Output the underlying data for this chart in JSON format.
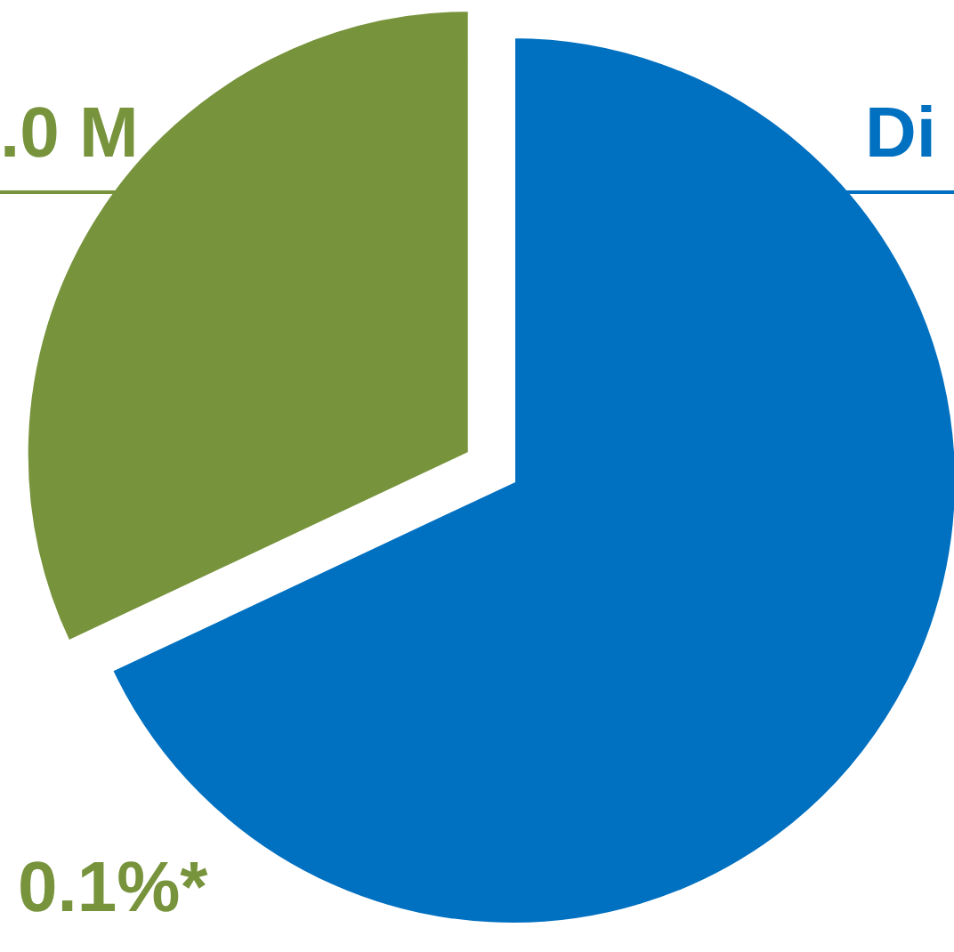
{
  "chart_data": {
    "type": "pie",
    "categories": [
      null,
      null
    ],
    "values": [
      68,
      32
    ],
    "colors": [
      "#0070c0",
      "#77933c"
    ],
    "annotations": [
      ".0 M",
      "Di",
      "0.1%*"
    ]
  }
}
